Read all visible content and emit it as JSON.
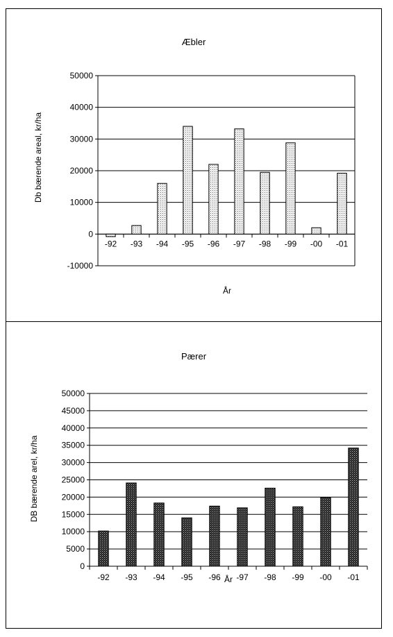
{
  "chart_data": [
    {
      "type": "bar",
      "title": "Æbler",
      "xlabel": "År",
      "ylabel": "Db bærende areal, kr/ha",
      "categories": [
        "-92",
        "-93",
        "-94",
        "-95",
        "-96",
        "-97",
        "-98",
        "-99",
        "-00",
        "-01"
      ],
      "values": [
        -800,
        2700,
        16000,
        34000,
        22000,
        33200,
        19500,
        28800,
        2000,
        19200
      ],
      "ylim": [
        -10000,
        50000
      ],
      "yticks": [
        "50000",
        "40000",
        "30000",
        "20000",
        "10000",
        "0",
        "-10000"
      ],
      "ytick_values": [
        50000,
        40000,
        30000,
        20000,
        10000,
        0,
        -10000
      ],
      "grid": true,
      "bar_fill": "light-dotted",
      "bar_color": "#ececec"
    },
    {
      "type": "bar",
      "title": "Pærer",
      "xlabel": "År",
      "ylabel": "DB bærende arel, kr/ha",
      "categories": [
        "-92",
        "-93",
        "-94",
        "-95",
        "-96",
        "-97",
        "-98",
        "-99",
        "-00",
        "-01"
      ],
      "values": [
        10200,
        24100,
        18300,
        14000,
        17400,
        16900,
        22600,
        17200,
        19900,
        34200
      ],
      "ylim": [
        0,
        50000
      ],
      "yticks": [
        "50000",
        "45000",
        "40000",
        "35000",
        "30000",
        "25000",
        "20000",
        "15000",
        "10000",
        "5000",
        "0"
      ],
      "ytick_values": [
        50000,
        45000,
        40000,
        35000,
        30000,
        25000,
        20000,
        15000,
        10000,
        5000,
        0
      ],
      "grid": true,
      "bar_fill": "dark-dotted",
      "bar_color": "#3a3a3a"
    }
  ]
}
